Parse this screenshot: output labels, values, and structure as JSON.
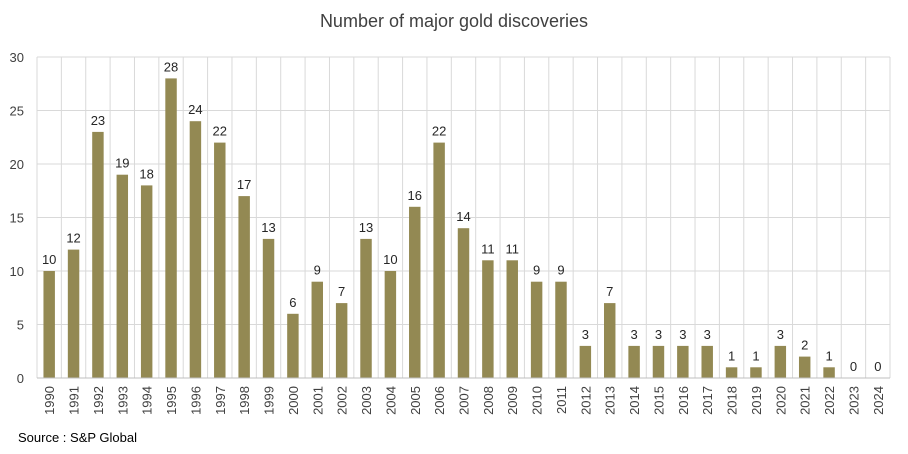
{
  "chart_data": {
    "type": "bar",
    "title": "Number of major gold discoveries",
    "xlabel": "",
    "ylabel": "",
    "ylim": [
      0,
      30
    ],
    "yticks": [
      0,
      5,
      10,
      15,
      20,
      25,
      30
    ],
    "grid": true,
    "legend": "none",
    "categories": [
      "1990",
      "1991",
      "1992",
      "1993",
      "1994",
      "1995",
      "1996",
      "1997",
      "1998",
      "1999",
      "2000",
      "2001",
      "2002",
      "2003",
      "2004",
      "2005",
      "2006",
      "2007",
      "2008",
      "2009",
      "2010",
      "2011",
      "2012",
      "2013",
      "2014",
      "2015",
      "2016",
      "2017",
      "2018",
      "2019",
      "2020",
      "2021",
      "2022",
      "2023",
      "2024"
    ],
    "values": [
      10,
      12,
      23,
      19,
      18,
      28,
      24,
      22,
      17,
      13,
      6,
      9,
      7,
      13,
      10,
      16,
      22,
      14,
      11,
      11,
      9,
      9,
      3,
      7,
      3,
      3,
      3,
      3,
      1,
      1,
      3,
      2,
      1,
      0,
      0
    ],
    "bar_color": "#938953",
    "grid_color": "#d9d9d9",
    "text_color": "#404040"
  },
  "source": "Source : S&P Global"
}
